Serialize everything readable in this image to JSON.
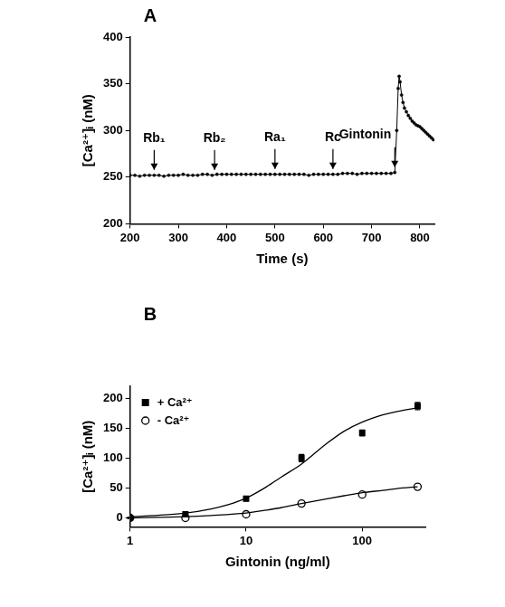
{
  "chart_data": [
    {
      "type": "line",
      "title": "A",
      "x_label": "Time (s)",
      "y_label": "[Ca²⁺]ᵢ (nM)",
      "color": "#000000",
      "marker": "circle",
      "line_style": "solid",
      "grid": false,
      "xlim": [
        200,
        830
      ],
      "xticks": [
        200,
        300,
        400,
        500,
        600,
        700,
        800
      ],
      "ylim": [
        200,
        400
      ],
      "yticks": [
        200,
        250,
        300,
        350,
        400
      ],
      "x": [
        200,
        210,
        220,
        230,
        240,
        250,
        260,
        270,
        280,
        290,
        300,
        310,
        320,
        330,
        340,
        350,
        360,
        370,
        380,
        390,
        400,
        410,
        420,
        430,
        440,
        450,
        460,
        470,
        480,
        490,
        500,
        510,
        520,
        530,
        540,
        550,
        560,
        570,
        580,
        590,
        600,
        610,
        620,
        630,
        640,
        650,
        660,
        670,
        680,
        690,
        700,
        710,
        720,
        730,
        740,
        748,
        752,
        755,
        757,
        759,
        762,
        765,
        768,
        772,
        776,
        780,
        784,
        788,
        792,
        796,
        800,
        804,
        808,
        812,
        816,
        820,
        824,
        828
      ],
      "values": [
        252,
        252,
        251,
        252,
        252,
        252,
        252,
        251,
        252,
        252,
        252,
        253,
        252,
        252,
        252,
        253,
        253,
        252,
        253,
        253,
        253,
        253,
        253,
        253,
        253,
        253,
        253,
        253,
        253,
        253,
        253,
        253,
        253,
        253,
        253,
        253,
        253,
        252,
        253,
        253,
        253,
        253,
        253,
        253,
        254,
        254,
        254,
        253,
        254,
        254,
        254,
        254,
        254,
        254,
        254,
        255,
        300,
        345,
        358,
        352,
        338,
        330,
        324,
        320,
        316,
        313,
        310,
        308,
        306,
        305,
        304,
        302,
        300,
        298,
        296,
        294,
        292,
        290
      ],
      "annotations": [
        {
          "text": "Rb₁",
          "x": 250
        },
        {
          "text": "Rb₂",
          "x": 375
        },
        {
          "text": "Ra₁",
          "x": 500
        },
        {
          "text": "Rc",
          "x": 620
        },
        {
          "text": "Gintonin",
          "x": 748
        }
      ]
    },
    {
      "type": "scatter",
      "title": "B",
      "x_label": "Gintonin (ng/ml)",
      "y_label": "[Ca²⁺]ᵢ (nM)",
      "log": "x",
      "grid": false,
      "legend": "upper left",
      "xlim": [
        1,
        350
      ],
      "xticks": [
        1,
        10,
        100
      ],
      "ylim": [
        -15,
        220
      ],
      "yticks": [
        0,
        50,
        100,
        150,
        200
      ],
      "series": [
        {
          "name": "+ Ca²⁺",
          "color": "#000000",
          "marker": "square",
          "x": [
            1,
            3,
            10,
            30,
            100,
            300
          ],
          "values": [
            0,
            6,
            32,
            100,
            142,
            187
          ],
          "errors": [
            1,
            1,
            3,
            6,
            5,
            6
          ],
          "fit": {
            "x": [
              1,
              2,
              3,
              5,
              7,
              10,
              15,
              20,
              30,
              50,
              70,
              100,
              150,
              200,
              300
            ],
            "values": [
              2,
              5,
              8,
              15,
              22,
              33,
              52,
              68,
              90,
              125,
              145,
              160,
              172,
              178,
              184
            ]
          }
        },
        {
          "name": "- Ca²⁺",
          "color": "#000000",
          "marker": "open_circle",
          "x": [
            1,
            3,
            10,
            30,
            100,
            300
          ],
          "values": [
            0,
            0,
            6,
            24,
            39,
            52
          ],
          "errors": [
            1,
            1,
            2,
            3,
            3,
            3
          ],
          "fit": {
            "x": [
              1,
              3,
              5,
              10,
              15,
              20,
              30,
              50,
              70,
              100,
              150,
              200,
              300
            ],
            "values": [
              0,
              2,
              4,
              8,
              13,
              17,
              24,
              32,
              37,
              42,
              46,
              49,
              52
            ]
          }
        }
      ]
    }
  ]
}
